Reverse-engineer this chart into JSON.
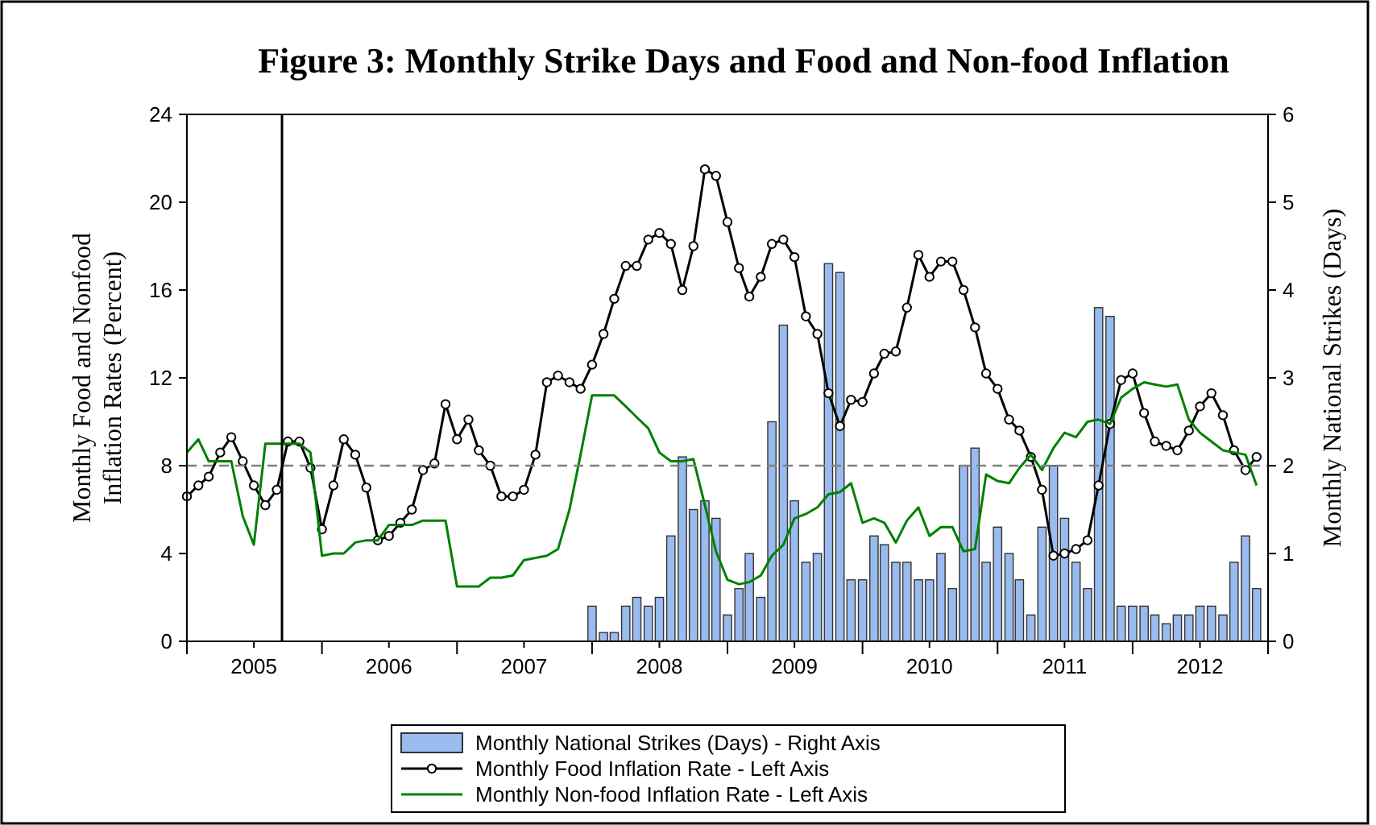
{
  "chart_data": {
    "type": "line",
    "title": "Figure 3: Monthly Strike Days and Food and Non-food Inflation",
    "ylabel": "Monthly Food and Nonfood Inflation Rates (Percent)",
    "y2label": "Monthly National Strikes (Days)",
    "x": [
      "2005-01",
      "2005-02",
      "2005-03",
      "2005-04",
      "2005-05",
      "2005-06",
      "2005-07",
      "2005-08",
      "2005-09",
      "2005-10",
      "2005-11",
      "2005-12",
      "2006-01",
      "2006-02",
      "2006-03",
      "2006-04",
      "2006-05",
      "2006-06",
      "2006-07",
      "2006-08",
      "2006-09",
      "2006-10",
      "2006-11",
      "2006-12",
      "2007-01",
      "2007-02",
      "2007-03",
      "2007-04",
      "2007-05",
      "2007-06",
      "2007-07",
      "2007-08",
      "2007-09",
      "2007-10",
      "2007-11",
      "2007-12",
      "2008-01",
      "2008-02",
      "2008-03",
      "2008-04",
      "2008-05",
      "2008-06",
      "2008-07",
      "2008-08",
      "2008-09",
      "2008-10",
      "2008-11",
      "2008-12",
      "2009-01",
      "2009-02",
      "2009-03",
      "2009-04",
      "2009-05",
      "2009-06",
      "2009-07",
      "2009-08",
      "2009-09",
      "2009-10",
      "2009-11",
      "2009-12",
      "2010-01",
      "2010-02",
      "2010-03",
      "2010-04",
      "2010-05",
      "2010-06",
      "2010-07",
      "2010-08",
      "2010-09",
      "2010-10",
      "2010-11",
      "2010-12",
      "2011-01",
      "2011-02",
      "2011-03",
      "2011-04",
      "2011-05",
      "2011-06",
      "2011-07",
      "2011-08",
      "2011-09",
      "2011-10",
      "2011-11",
      "2011-12",
      "2012-01",
      "2012-02",
      "2012-03",
      "2012-04",
      "2012-05",
      "2012-06",
      "2012-07",
      "2012-08",
      "2012-09",
      "2012-10",
      "2012-11",
      "2012-12"
    ],
    "series": [
      {
        "name": "Monthly National Strikes (Days) - Right Axis",
        "type": "bar",
        "axis": "y2",
        "color": "#99bbee",
        "values": [
          null,
          null,
          null,
          null,
          null,
          null,
          null,
          null,
          null,
          null,
          null,
          null,
          null,
          null,
          null,
          null,
          null,
          null,
          null,
          null,
          null,
          null,
          null,
          null,
          null,
          null,
          null,
          null,
          null,
          null,
          null,
          null,
          null,
          null,
          null,
          null,
          0.4,
          0.1,
          0.1,
          0.4,
          0.5,
          0.4,
          0.5,
          1.2,
          2.1,
          1.5,
          1.6,
          1.4,
          0.3,
          0.6,
          1.0,
          0.5,
          2.5,
          3.6,
          1.6,
          0.9,
          1.0,
          4.3,
          4.2,
          0.7,
          0.7,
          1.2,
          1.1,
          0.9,
          0.9,
          0.7,
          0.7,
          1.0,
          0.6,
          2.0,
          2.2,
          0.9,
          1.3,
          1.0,
          0.7,
          0.3,
          1.3,
          2.0,
          1.4,
          0.9,
          0.6,
          3.8,
          3.7,
          0.4,
          0.4,
          0.4,
          0.3,
          0.2,
          0.3,
          0.3,
          0.4,
          0.4,
          0.3,
          0.9,
          1.2,
          0.6
        ]
      },
      {
        "name": "Monthly Food Inflation Rate - Left Axis",
        "color": "#000000",
        "marker": "circle",
        "values": [
          6.6,
          7.1,
          7.5,
          8.6,
          9.3,
          8.2,
          7.1,
          6.2,
          6.9,
          9.1,
          9.1,
          7.9,
          5.1,
          7.1,
          9.2,
          8.5,
          7.0,
          4.6,
          4.8,
          5.4,
          6.0,
          7.8,
          8.1,
          10.8,
          9.2,
          10.1,
          8.7,
          8.0,
          6.6,
          6.6,
          6.9,
          8.5,
          11.8,
          12.1,
          11.8,
          11.5,
          12.6,
          14.0,
          15.6,
          17.1,
          17.1,
          18.3,
          18.6,
          18.1,
          16.0,
          18.0,
          21.5,
          21.2,
          19.1,
          17.0,
          15.7,
          16.6,
          18.1,
          18.3,
          17.5,
          14.8,
          14.0,
          11.3,
          9.8,
          11.0,
          10.9,
          12.2,
          13.1,
          13.2,
          15.2,
          17.6,
          16.6,
          17.3,
          17.3,
          16.0,
          14.3,
          12.2,
          11.5,
          10.1,
          9.6,
          8.4,
          6.9,
          3.9,
          4.0,
          4.2,
          4.6,
          7.1,
          9.9,
          11.9,
          12.2,
          10.4,
          9.1,
          8.9,
          8.7,
          9.6,
          10.7,
          11.3,
          10.3,
          8.7,
          7.8,
          8.4
        ]
      },
      {
        "name": "Monthly Non-food Inflation Rate - Left Axis",
        "color": "#008000",
        "marker": "none",
        "values": [
          8.6,
          9.2,
          8.2,
          8.2,
          8.2,
          5.7,
          4.4,
          9.0,
          9.0,
          9.0,
          9.0,
          8.6,
          3.9,
          4.0,
          4.0,
          4.5,
          4.6,
          4.6,
          5.3,
          5.3,
          5.3,
          5.5,
          5.5,
          5.5,
          2.5,
          2.5,
          2.5,
          2.9,
          2.9,
          3.0,
          3.7,
          3.8,
          3.9,
          4.2,
          6.0,
          8.5,
          11.2,
          11.2,
          11.2,
          10.7,
          10.2,
          9.7,
          8.6,
          8.2,
          8.2,
          8.3,
          6.2,
          4.1,
          2.8,
          2.6,
          2.7,
          3.0,
          3.9,
          4.4,
          5.6,
          5.8,
          6.1,
          6.7,
          6.8,
          7.2,
          5.4,
          5.6,
          5.4,
          4.5,
          5.5,
          6.1,
          4.8,
          5.2,
          5.2,
          4.1,
          4.2,
          7.6,
          7.3,
          7.2,
          7.9,
          8.5,
          7.8,
          8.8,
          9.5,
          9.3,
          10.0,
          10.1,
          9.9,
          11.1,
          11.5,
          11.8,
          11.7,
          11.6,
          11.7,
          10.1,
          9.5,
          9.1,
          8.7,
          8.6,
          8.5,
          7.1
        ]
      }
    ],
    "xlim": [
      "2005-01",
      "2013-01"
    ],
    "xticks": [
      {
        "value": "2005-01",
        "label": null
      },
      {
        "value": "2005-07",
        "label": "2005"
      },
      {
        "value": "2006-01",
        "label": null
      },
      {
        "value": "2006-07",
        "label": "2006"
      },
      {
        "value": "2007-01",
        "label": null
      },
      {
        "value": "2007-07",
        "label": "2007"
      },
      {
        "value": "2008-01",
        "label": null
      },
      {
        "value": "2008-07",
        "label": "2008"
      },
      {
        "value": "2009-01",
        "label": null
      },
      {
        "value": "2009-07",
        "label": "2009"
      },
      {
        "value": "2010-01",
        "label": null
      },
      {
        "value": "2010-07",
        "label": "2010"
      },
      {
        "value": "2011-01",
        "label": null
      },
      {
        "value": "2011-07",
        "label": "2011"
      },
      {
        "value": "2012-01",
        "label": null
      },
      {
        "value": "2012-07",
        "label": "2012"
      },
      {
        "value": "2013-01",
        "label": null
      }
    ],
    "ylim": [
      0,
      24
    ],
    "yticks": [
      0,
      4,
      8,
      12,
      16,
      20,
      24
    ],
    "y2lim": [
      0,
      6
    ],
    "y2ticks": [
      0,
      1,
      2,
      3,
      4,
      5,
      6
    ],
    "ref_lines": [
      {
        "axis": "y",
        "value": 8,
        "color": "#808080",
        "line_style": "dashed"
      },
      {
        "axis": "x",
        "value": "2005-09-15",
        "color": "#000000",
        "line_style": "solid"
      }
    ],
    "grid": false,
    "legend": "bottom"
  }
}
